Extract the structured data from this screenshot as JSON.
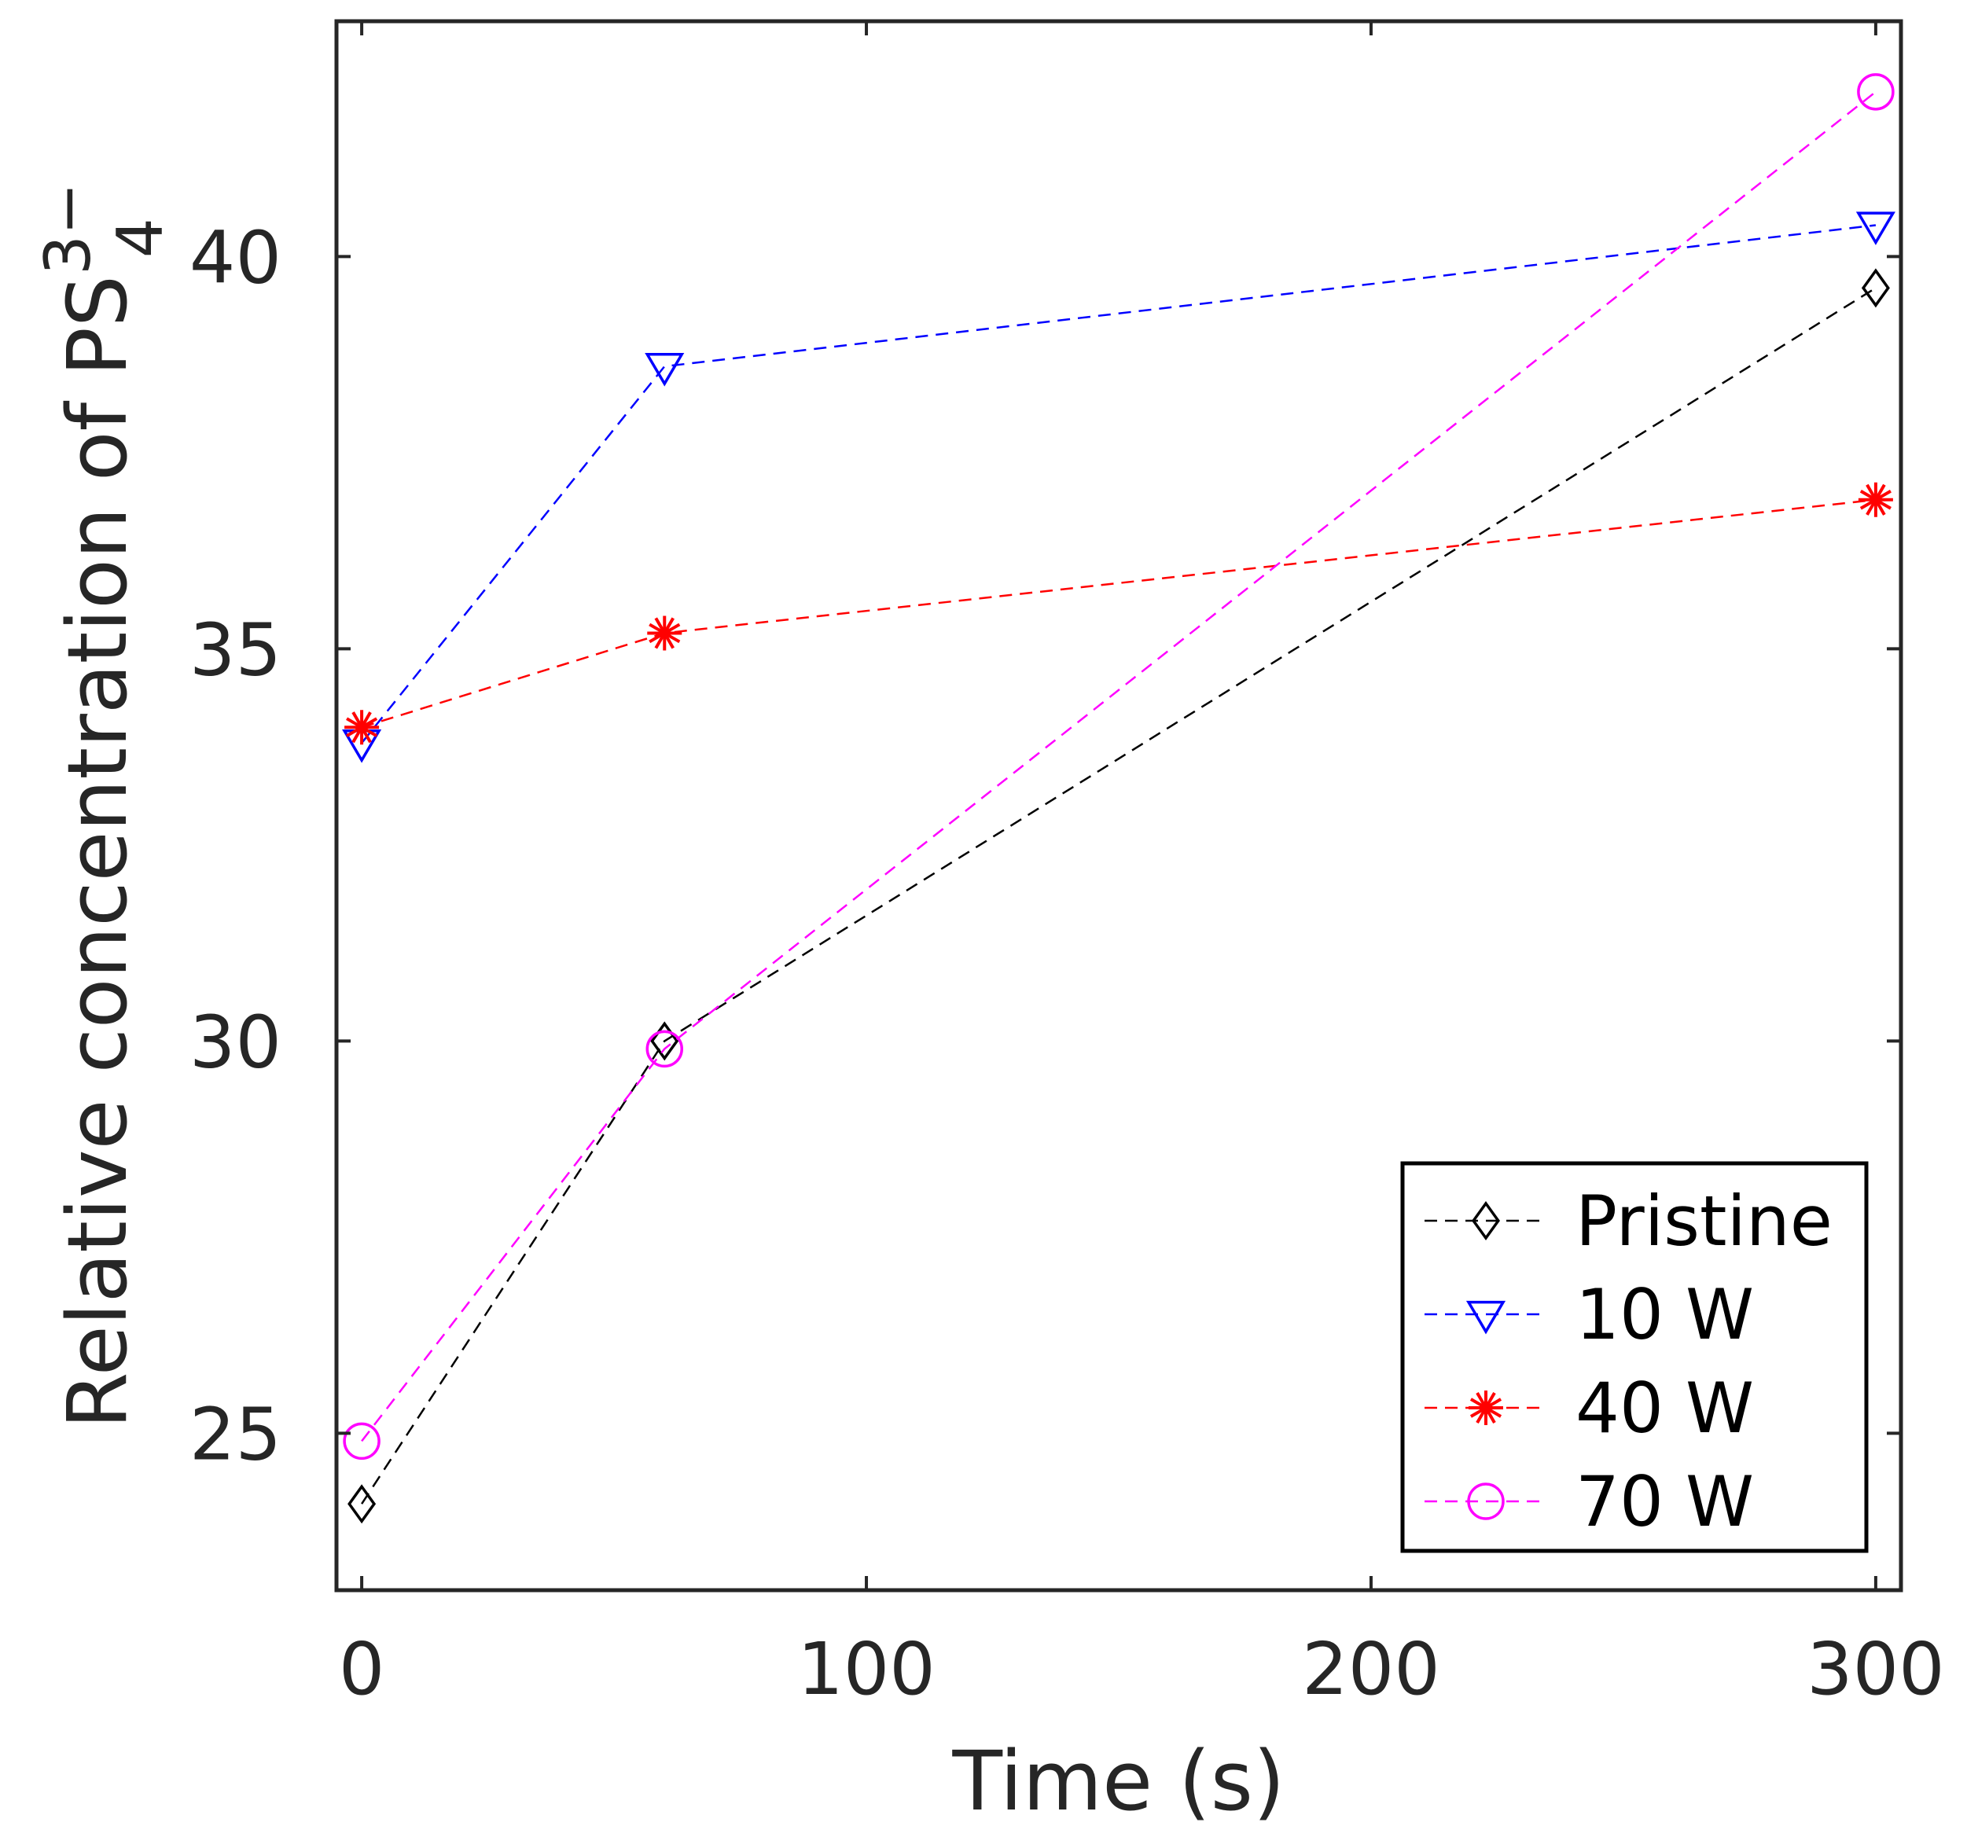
{
  "chart_data": {
    "type": "line",
    "title": "",
    "xlabel": "Time (s)",
    "ylabel_prefix": "Relative concentration of PS",
    "ylabel_subscript": "4",
    "ylabel_superscript": "3−",
    "x": [
      0,
      60,
      300
    ],
    "xlim": [
      -5,
      305
    ],
    "ylim": [
      23,
      43
    ],
    "xticks": [
      0,
      100,
      200,
      300
    ],
    "xtick_labels": [
      "0",
      "100",
      "200",
      "300"
    ],
    "yticks": [
      25,
      30,
      35,
      40
    ],
    "ytick_labels": [
      "25",
      "30",
      "35",
      "40"
    ],
    "grid": false,
    "legend_position": "bottom-right",
    "series": [
      {
        "name": "Pristine",
        "color": "#000000",
        "marker": "diamond",
        "values": [
          24.1,
          30.0,
          39.6
        ]
      },
      {
        "name": "10 W",
        "color": "#0000ff",
        "marker": "triangle-down",
        "values": [
          33.8,
          38.6,
          40.4
        ]
      },
      {
        "name": "40 W",
        "color": "#ff0000",
        "marker": "asterisk",
        "values": [
          34.0,
          35.2,
          36.9
        ]
      },
      {
        "name": "70 W",
        "color": "#ff00ff",
        "marker": "circle",
        "values": [
          24.9,
          29.9,
          42.1
        ]
      }
    ]
  }
}
